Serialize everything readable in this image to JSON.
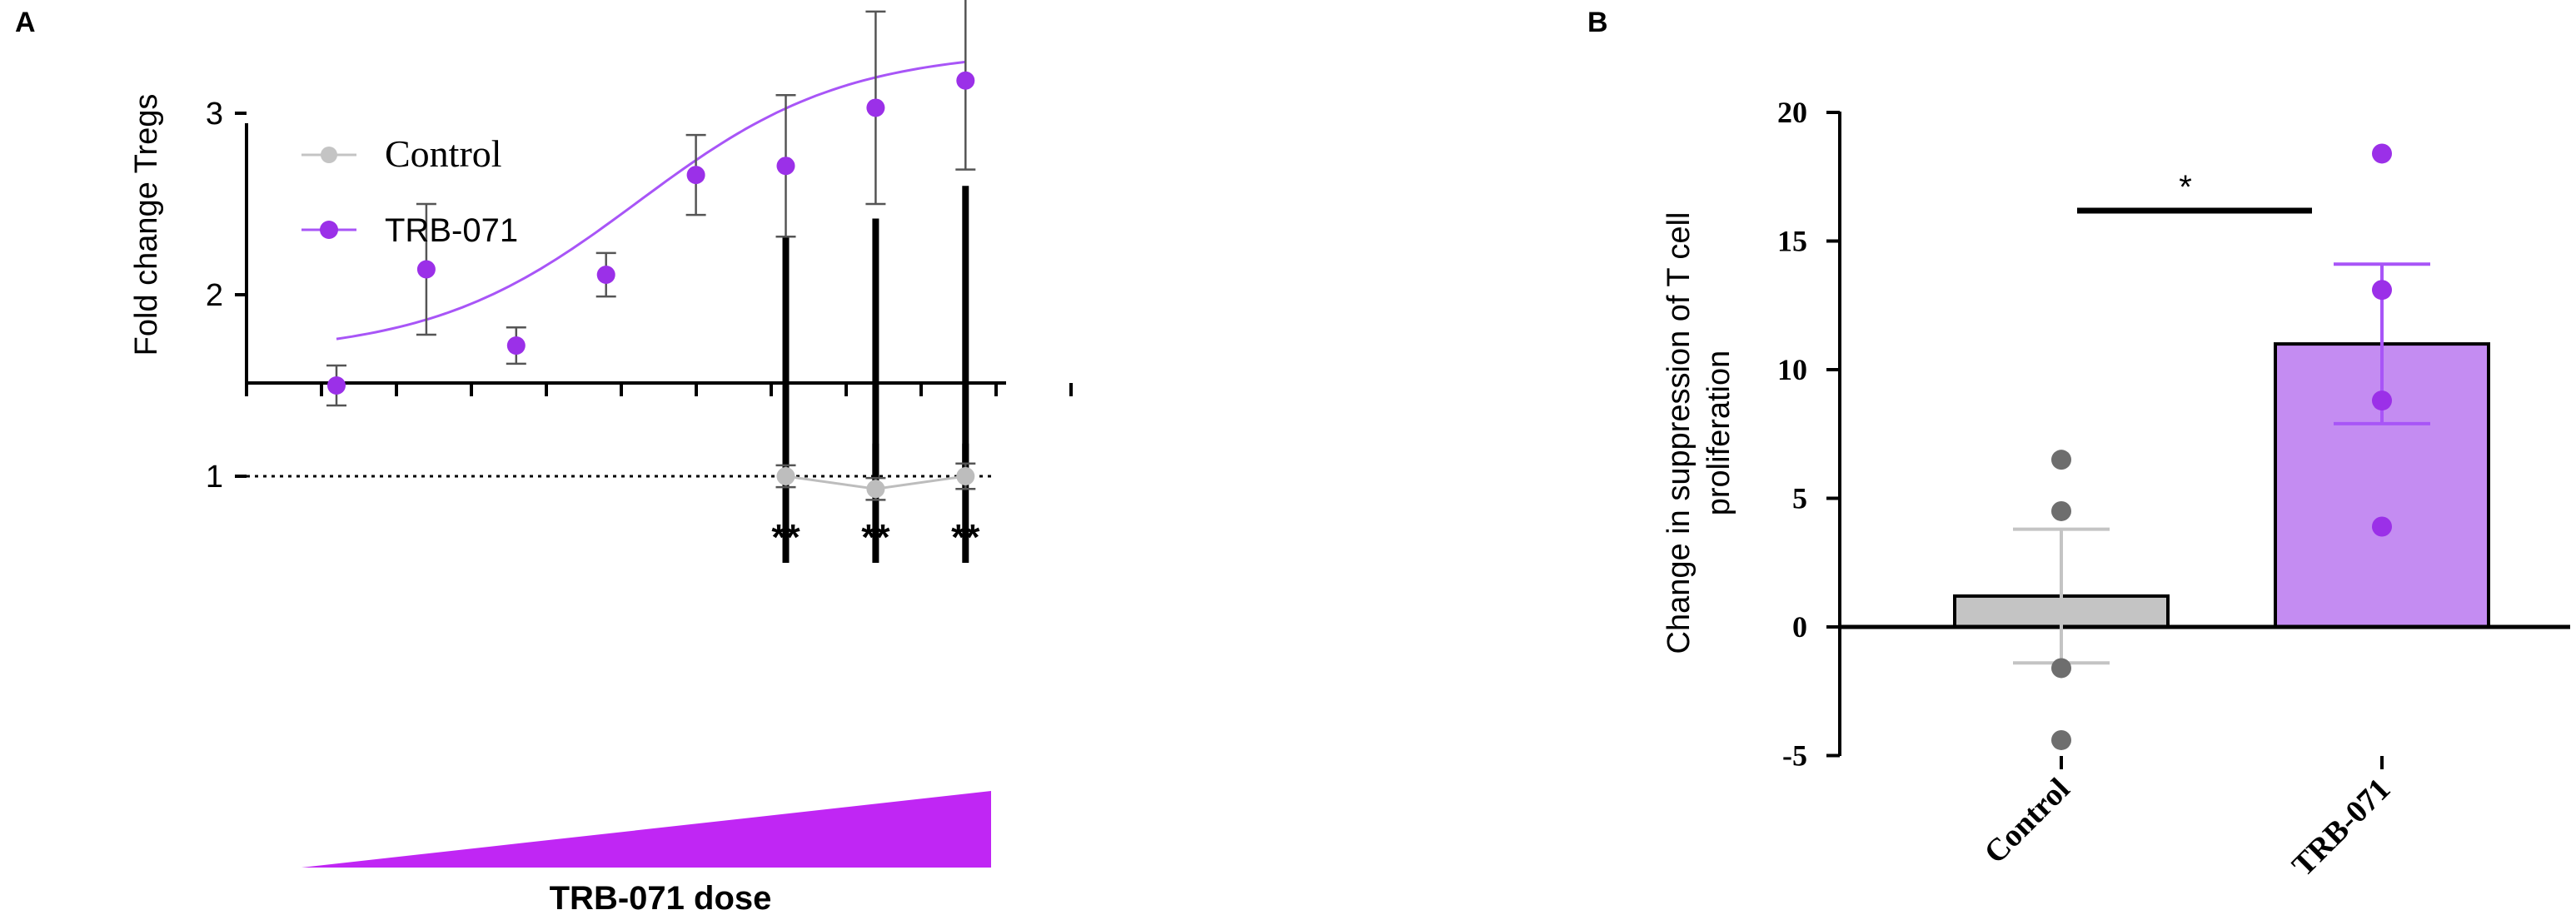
{
  "chart_data": [
    {
      "panel_label": "A",
      "type": "scatter",
      "ylabel": "Fold change Tregs",
      "xlabel": "TRB-071 dose",
      "ylim": [
        0,
        4
      ],
      "yticks": [
        "1",
        "2",
        "3",
        "4"
      ],
      "reference_line_y": 1,
      "legend": {
        "placement": "top-left",
        "entries": [
          "Control",
          "TRB-071"
        ]
      },
      "series": [
        {
          "name": "TRB-071",
          "color": "#9b30e8",
          "x": [
            1,
            2,
            3,
            4,
            5,
            6,
            7,
            8
          ],
          "y": [
            1.5,
            2.14,
            1.72,
            2.11,
            2.66,
            2.71,
            3.03,
            3.18
          ],
          "err": [
            0.11,
            0.36,
            0.1,
            0.12,
            0.22,
            0.39,
            0.53,
            0.49
          ],
          "fit": "sigmoidal",
          "fit_range": [
            1.67,
            3.35
          ]
        },
        {
          "name": "Control",
          "color": "#bdbdbd",
          "x": [
            6,
            7,
            8
          ],
          "y": [
            1.0,
            0.93,
            1.0
          ],
          "err": [
            0.06,
            0.06,
            0.07
          ]
        }
      ],
      "annotations": [
        {
          "x": 6,
          "text": "**",
          "from": 1.18,
          "to": 2.32
        },
        {
          "x": 7,
          "text": "**",
          "from": 1.18,
          "to": 2.42
        },
        {
          "x": 8,
          "text": "**",
          "from": 1.18,
          "to": 2.6
        }
      ]
    },
    {
      "panel_label": "B",
      "type": "bar",
      "ylabel_lines": [
        "Change in suppression of T cell",
        "proliferation"
      ],
      "categories": [
        "Control",
        "TRB-071"
      ],
      "values": [
        1.2,
        11.0
      ],
      "sem": [
        2.6,
        3.1
      ],
      "points": [
        [
          6.5,
          4.5,
          -1.6,
          -4.4
        ],
        [
          18.4,
          13.1,
          8.8,
          3.9
        ]
      ],
      "bar_colors": [
        "#c4c4c4",
        "#c48cf2"
      ],
      "point_colors": [
        "#6e6e6e",
        "#9b30e8"
      ],
      "ylim": [
        -5,
        20
      ],
      "yticks": [
        "-5",
        "0",
        "5",
        "10",
        "15",
        "20"
      ],
      "significance": "*"
    }
  ]
}
